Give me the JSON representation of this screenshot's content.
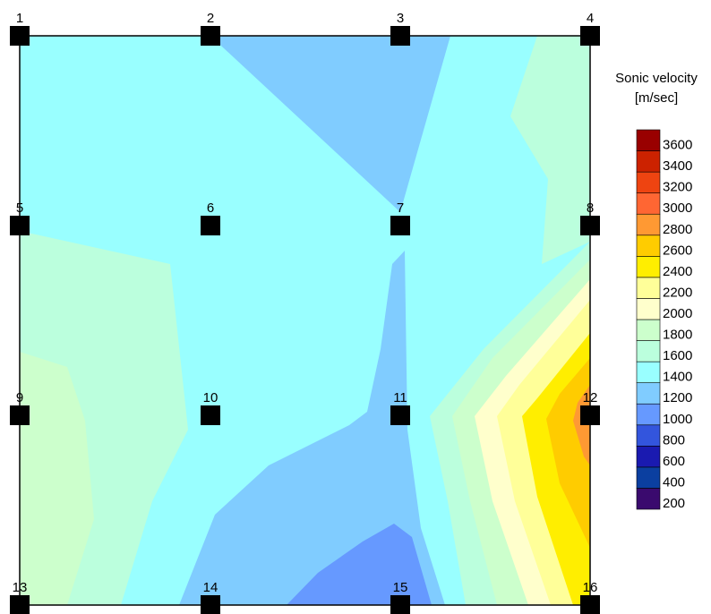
{
  "chart_data": {
    "type": "heatmap",
    "title": "Sonic velocity",
    "unit": "[m/sec]",
    "sensors": [
      "1",
      "2",
      "3",
      "4",
      "5",
      "6",
      "7",
      "8",
      "9",
      "10",
      "11",
      "12",
      "13",
      "14",
      "15",
      "16"
    ],
    "colorbar": {
      "ticks": [
        3600,
        3400,
        3200,
        3000,
        2800,
        2600,
        2400,
        2200,
        2000,
        1800,
        1600,
        1400,
        1200,
        1000,
        800,
        600,
        400,
        200
      ],
      "levels": [
        {
          "from": 200,
          "to": 400,
          "color": "#3a0a6e"
        },
        {
          "from": 400,
          "to": 600,
          "color": "#0b3fa0"
        },
        {
          "from": 600,
          "to": 800,
          "color": "#1a1ab0"
        },
        {
          "from": 800,
          "to": 1000,
          "color": "#3355dd"
        },
        {
          "from": 1000,
          "to": 1200,
          "color": "#6699ff"
        },
        {
          "from": 1200,
          "to": 1400,
          "color": "#80ccff"
        },
        {
          "from": 1400,
          "to": 1600,
          "color": "#99ffff"
        },
        {
          "from": 1600,
          "to": 1800,
          "color": "#bbffdd"
        },
        {
          "from": 1800,
          "to": 2000,
          "color": "#ccffcc"
        },
        {
          "from": 2000,
          "to": 2200,
          "color": "#ffffcc"
        },
        {
          "from": 2200,
          "to": 2400,
          "color": "#ffff99"
        },
        {
          "from": 2400,
          "to": 2600,
          "color": "#ffee00"
        },
        {
          "from": 2600,
          "to": 2800,
          "color": "#ffcc00"
        },
        {
          "from": 2800,
          "to": 3000,
          "color": "#ff9933"
        },
        {
          "from": 3000,
          "to": 3200,
          "color": "#ff6633"
        },
        {
          "from": 3200,
          "to": 3400,
          "color": "#ee4411"
        },
        {
          "from": 3400,
          "to": 3600,
          "color": "#cc2200"
        },
        {
          "from": 3600,
          "to": 3800,
          "color": "#990000"
        }
      ]
    }
  }
}
